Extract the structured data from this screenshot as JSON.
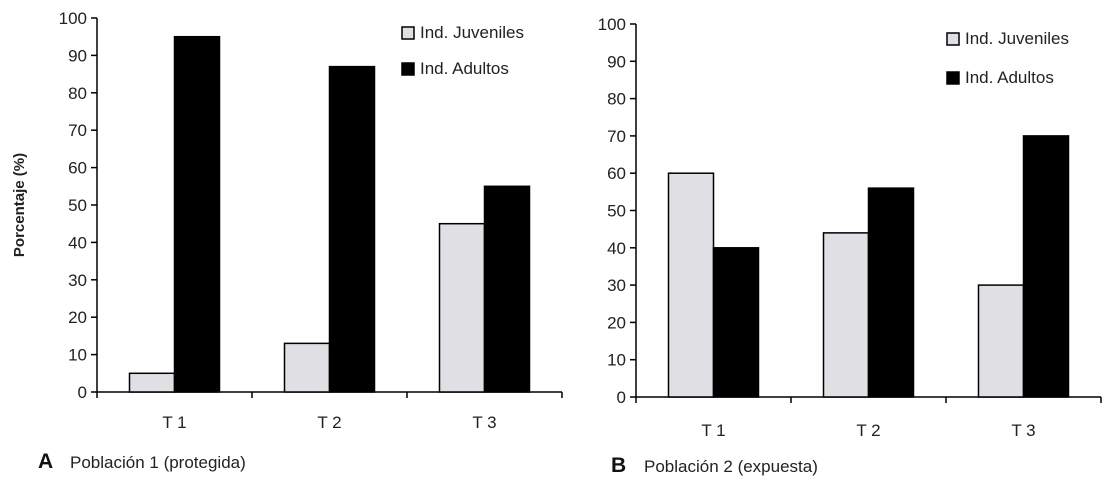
{
  "chart_data": [
    {
      "type": "bar",
      "panel_letter": "A",
      "caption": "Población 1 (protegida)",
      "ylabel": "Porcentaje (%)",
      "xlabel": "",
      "ylim": [
        0,
        100
      ],
      "yticks": [
        "0",
        "10",
        "20",
        "30",
        "40",
        "50",
        "60",
        "70",
        "80",
        "90",
        "100"
      ],
      "categories": [
        "T 1",
        "T 2",
        "T 3"
      ],
      "legend_position": "top-right",
      "grid": false,
      "series": [
        {
          "name": "Ind. Juveniles",
          "color": "#e0e0e4",
          "values": [
            5,
            13,
            45
          ]
        },
        {
          "name": "Ind. Adultos",
          "color": "#000000",
          "values": [
            95,
            87,
            55
          ]
        }
      ]
    },
    {
      "type": "bar",
      "panel_letter": "B",
      "caption": "Población 2 (expuesta)",
      "ylabel": "",
      "xlabel": "",
      "ylim": [
        0,
        100
      ],
      "yticks": [
        "0",
        "10",
        "20",
        "30",
        "40",
        "50",
        "60",
        "70",
        "80",
        "90",
        "100"
      ],
      "categories": [
        "T 1",
        "T 2",
        "T 3"
      ],
      "legend_position": "top-right",
      "grid": false,
      "series": [
        {
          "name": "Ind. Juveniles",
          "color": "#e0e0e4",
          "values": [
            60,
            44,
            30
          ]
        },
        {
          "name": "Ind. Adultos",
          "color": "#000000",
          "values": [
            40,
            56,
            70
          ]
        }
      ]
    }
  ]
}
